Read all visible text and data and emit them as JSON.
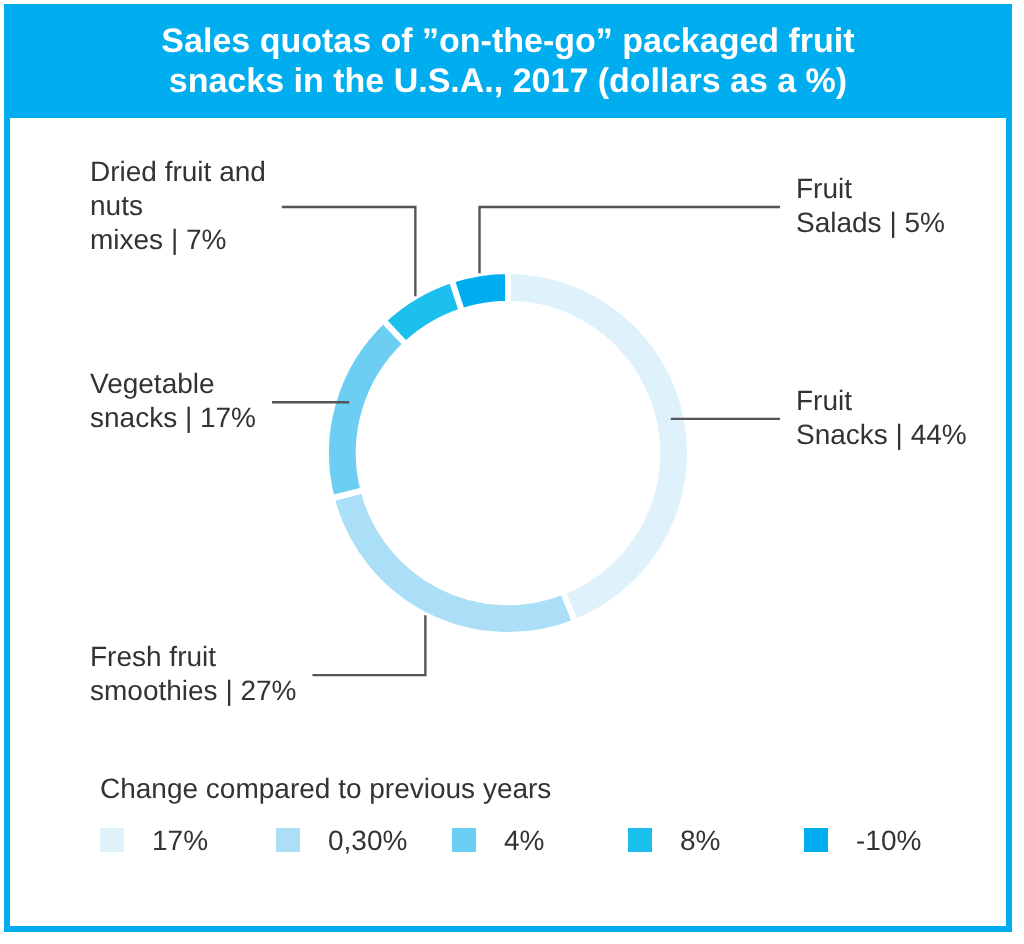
{
  "chart_data": {
    "type": "donut",
    "title": "Sales quotas of ”on-the-go” packaged fruit snacks in the U.S.A., 2017 (dollars as a %)",
    "categories": [
      "Fruit Snacks | 44%",
      "Fresh fruit smoothies | 27%",
      "Vegetable snacks | 17%",
      "Dried fruit and nuts mixes | 7%",
      "Fruit Salads | 5%"
    ],
    "values": [
      44,
      27,
      17,
      7,
      5
    ],
    "colors": [
      "#dff2fb",
      "#aadff7",
      "#6ccef3",
      "#1bc0ef",
      "#00aeef"
    ],
    "legend_title": "Change compared to previous years",
    "annotations": [
      "17%",
      "0,30%",
      "4%",
      "8%",
      "-10%"
    ]
  }
}
